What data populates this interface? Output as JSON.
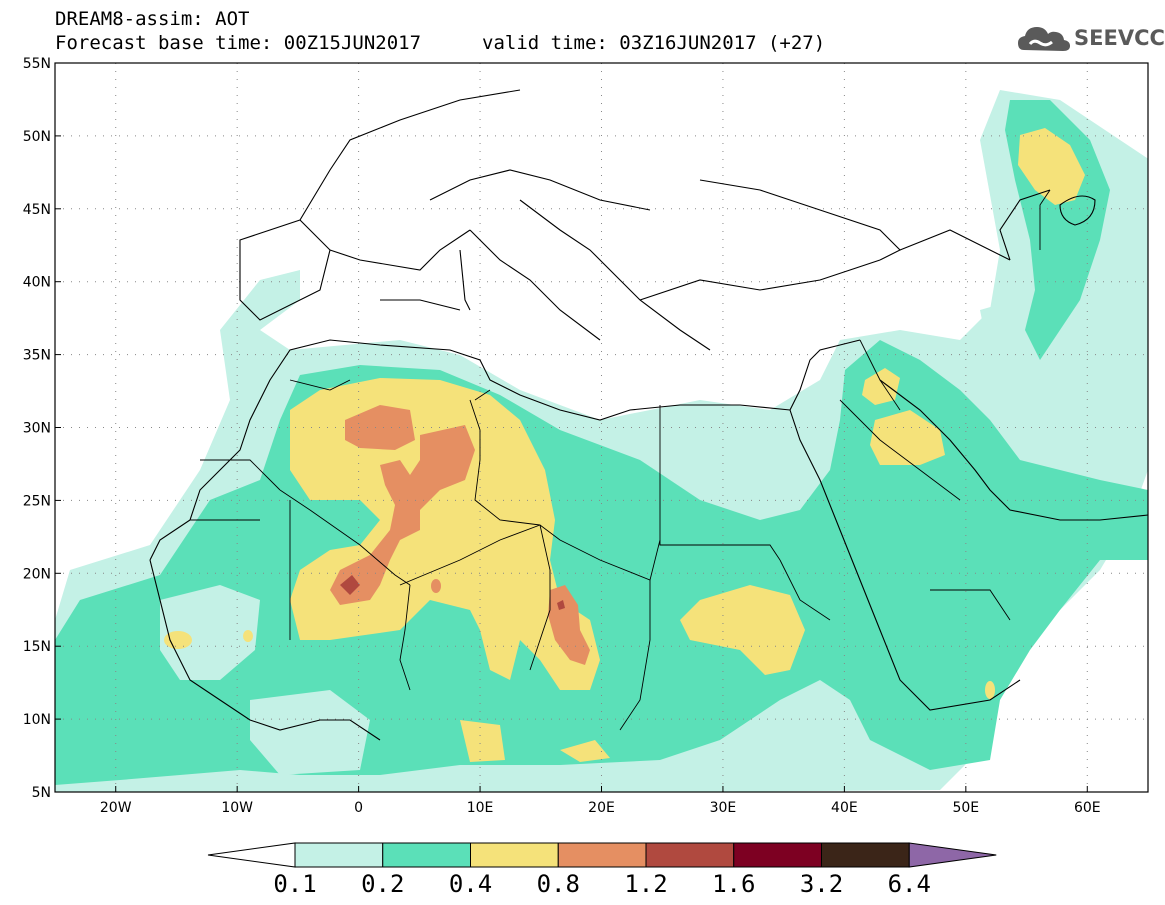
{
  "header": {
    "line1": "DREAM8-assim: AOT",
    "base_time": "Forecast base time: 00Z15JUN2017",
    "valid_time": "valid time: 03Z16JUN2017 (+27)",
    "logo_text": "SEEVCCC"
  },
  "map": {
    "lon_range": [
      -25,
      65
    ],
    "lat_range": [
      5,
      55
    ],
    "lon_ticks": [
      {
        "value": -20,
        "label": "20W"
      },
      {
        "value": -10,
        "label": "10W"
      },
      {
        "value": 0,
        "label": "0"
      },
      {
        "value": 10,
        "label": "10E"
      },
      {
        "value": 20,
        "label": "20E"
      },
      {
        "value": 30,
        "label": "30E"
      },
      {
        "value": 40,
        "label": "40E"
      },
      {
        "value": 50,
        "label": "50E"
      },
      {
        "value": 60,
        "label": "60E"
      }
    ],
    "lat_ticks": [
      {
        "value": 55,
        "label": "55N"
      },
      {
        "value": 50,
        "label": "50N"
      },
      {
        "value": 45,
        "label": "45N"
      },
      {
        "value": 40,
        "label": "40N"
      },
      {
        "value": 35,
        "label": "35N"
      },
      {
        "value": 30,
        "label": "30N"
      },
      {
        "value": 25,
        "label": "25N"
      },
      {
        "value": 20,
        "label": "20N"
      },
      {
        "value": 15,
        "label": "15N"
      },
      {
        "value": 10,
        "label": "10N"
      },
      {
        "value": 5,
        "label": "5N"
      }
    ],
    "gridlines": "dotted"
  },
  "colorbar": {
    "colors": [
      "#ffffff",
      "#c4f1e6",
      "#5be0b8",
      "#f5e27a",
      "#e58f62",
      "#b0493f",
      "#7d0022",
      "#3b2518",
      "#8e67a7"
    ],
    "labels": [
      "0.1",
      "0.2",
      "0.4",
      "0.8",
      "1.2",
      "1.6",
      "3.2",
      "6.4"
    ]
  }
}
